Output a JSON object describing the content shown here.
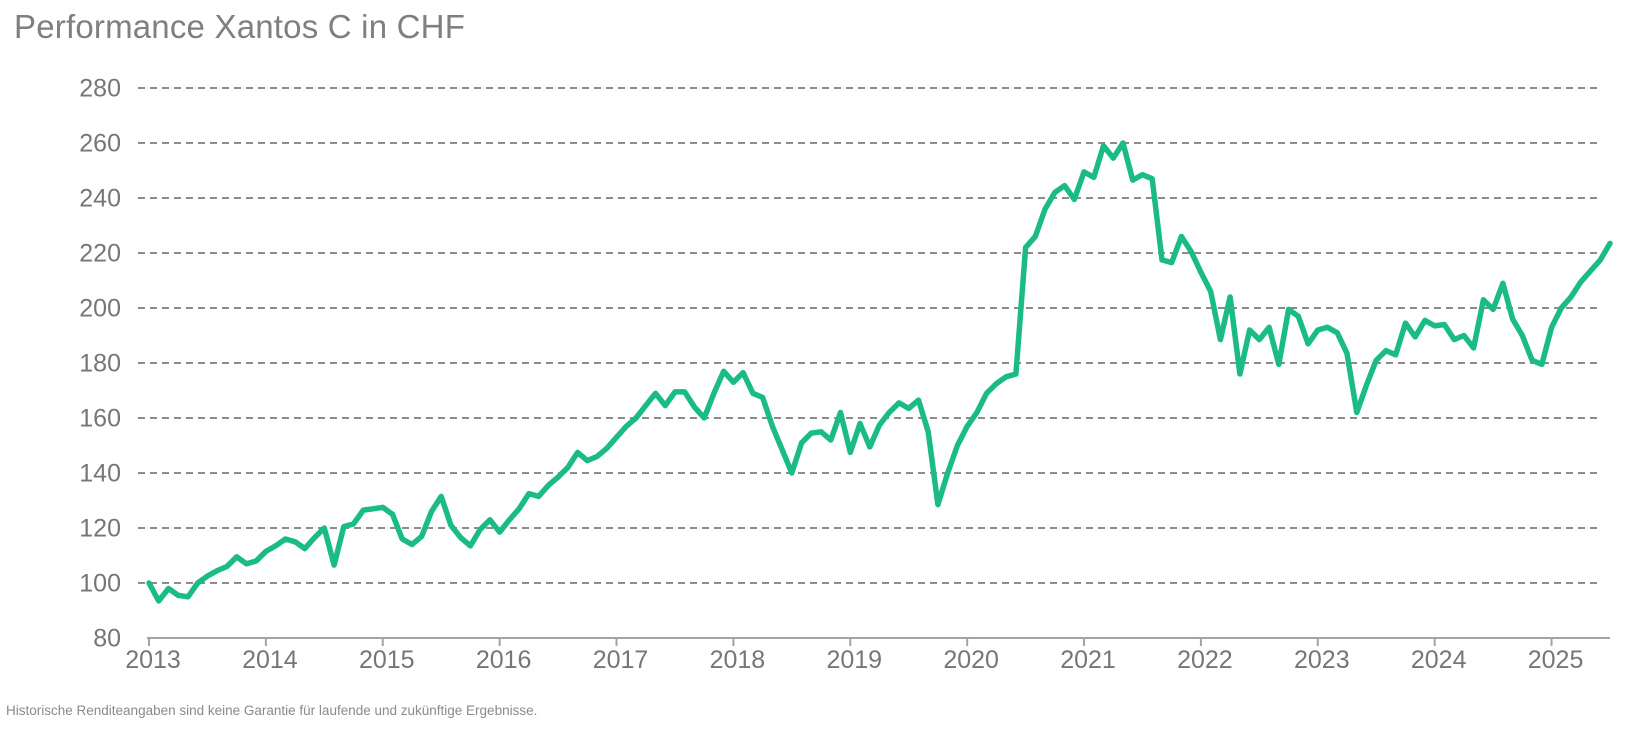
{
  "chart_data": {
    "type": "line",
    "title": "Performance Xantos C in CHF",
    "series_name": "Xantos C in CHF",
    "frequency": "monthly",
    "start_period": "2013-01",
    "x_tick_labels": [
      "2013",
      "2014",
      "2015",
      "2016",
      "2017",
      "2018",
      "2019",
      "2020",
      "2021",
      "2022",
      "2023",
      "2024",
      "2025"
    ],
    "y_ticks": [
      280,
      260,
      240,
      220,
      200,
      180,
      160,
      140,
      120,
      100,
      80
    ],
    "ylim": [
      80,
      280
    ],
    "grid": "horizontal-dashed",
    "legend": "none",
    "values": [
      100,
      93.5,
      98,
      95.5,
      95,
      100,
      102.5,
      104.5,
      106,
      109.5,
      107,
      108,
      111.5,
      113.5,
      116,
      115,
      112.5,
      116.5,
      120,
      106.5,
      120.5,
      121.5,
      126.5,
      127,
      127.5,
      125,
      116,
      114,
      117,
      126,
      131.5,
      121,
      116.5,
      113.5,
      119.5,
      123,
      118.5,
      123,
      127,
      132.5,
      131.5,
      135.5,
      138.5,
      142,
      147.5,
      144.5,
      146,
      149,
      153,
      157,
      160,
      164.5,
      169,
      164.5,
      169.5,
      169.5,
      164,
      160,
      169,
      177,
      173,
      176.5,
      169,
      167.5,
      157,
      148.5,
      140,
      151,
      154.5,
      155,
      152,
      162,
      147.5,
      158,
      149.5,
      157.5,
      162,
      165.5,
      163.5,
      166.5,
      155,
      128.5,
      140,
      150,
      157,
      162,
      169,
      172.5,
      175,
      176,
      222,
      226,
      236,
      242,
      244.5,
      239.5,
      249.5,
      247.5,
      259,
      254.5,
      260,
      246.5,
      248.5,
      247,
      217.5,
      216.5,
      226,
      220.5,
      213,
      206,
      188.5,
      204,
      176,
      192,
      188.5,
      193,
      179.5,
      199.5,
      197,
      187,
      192,
      193,
      191,
      183.5,
      162,
      172,
      181,
      184.5,
      183,
      194.5,
      189.5,
      195.5,
      193.5,
      194,
      188.5,
      190,
      185.5,
      203,
      199.5,
      209,
      196,
      190,
      181,
      179.5,
      193,
      200,
      204,
      209.5,
      213.5,
      217.5,
      223.5
    ],
    "line_color": "#1abc84",
    "footnote": "Historische Renditeangaben sind keine Garantie für laufende und zukünftige Ergebnisse."
  },
  "colors": {
    "line": "#1abc84",
    "title_text": "#7f7f7f",
    "axis_text": "#767676",
    "gridline": "#8c8c8c",
    "axis_line": "#a3a3a3",
    "footnote_text": "#8a8a8a",
    "background": "#ffffff"
  }
}
